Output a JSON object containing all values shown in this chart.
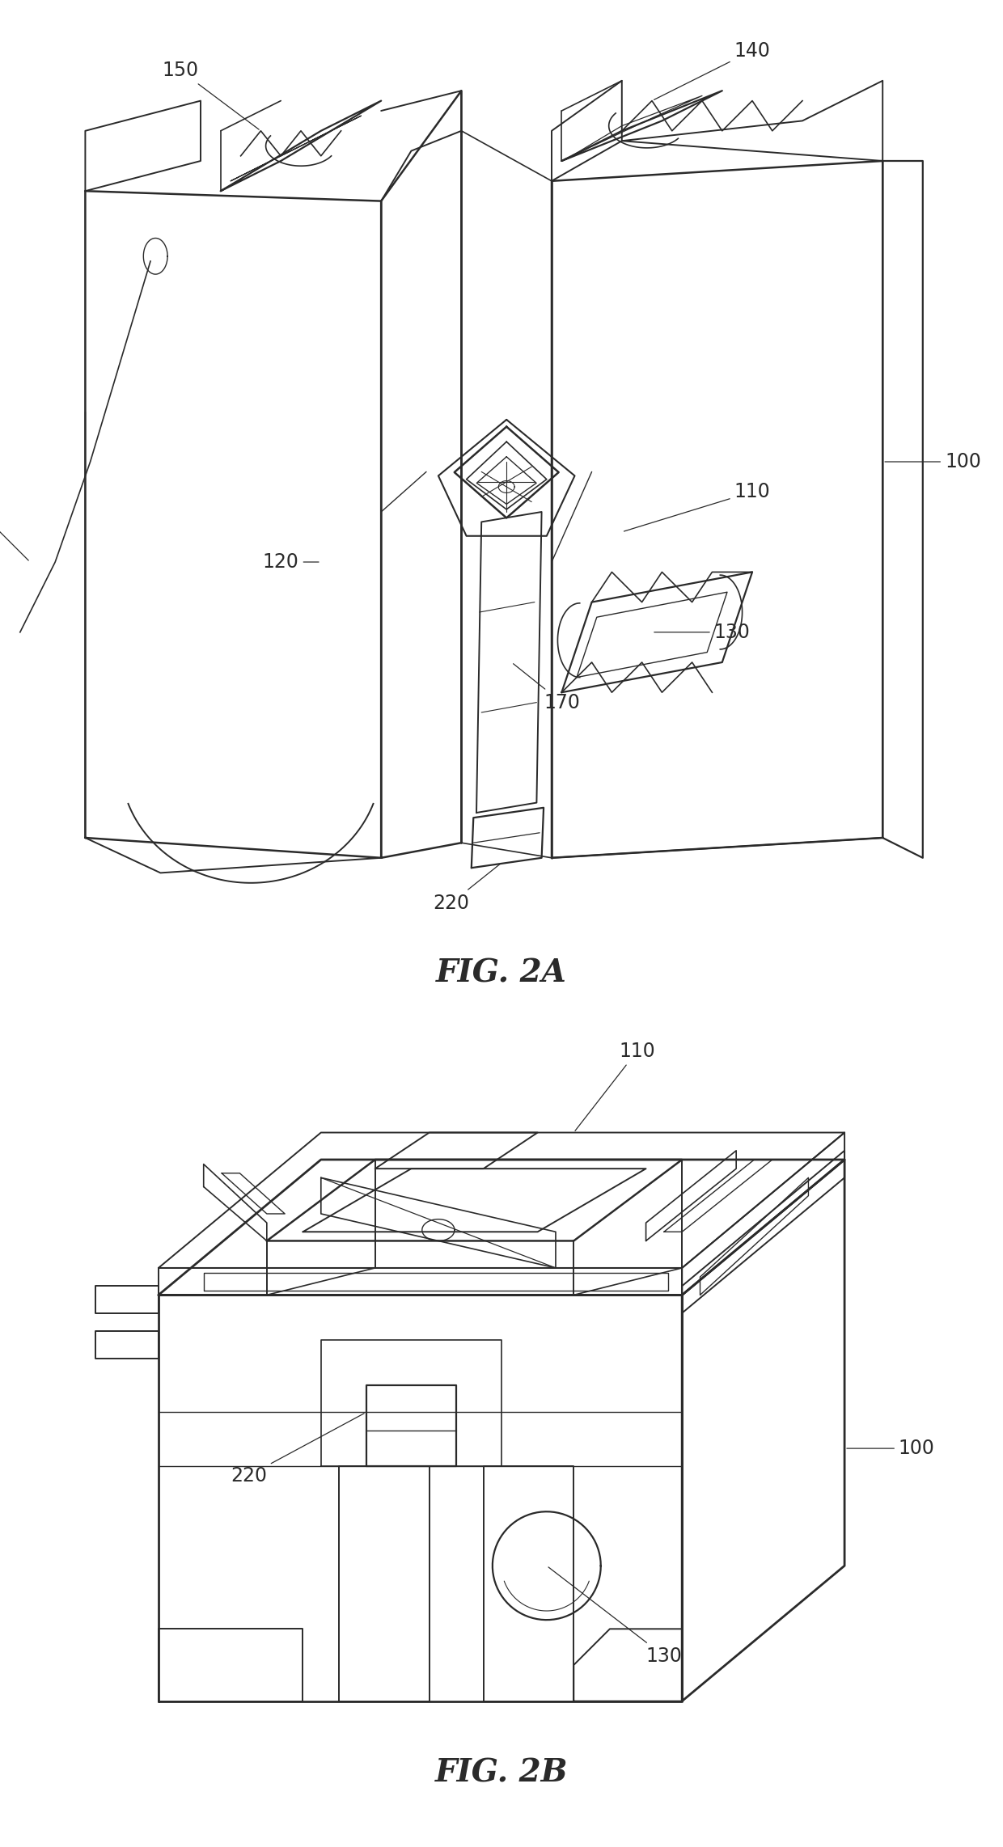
{
  "fig2a_label": "FIG. 2A",
  "fig2b_label": "FIG. 2B",
  "background_color": "#ffffff",
  "line_color": "#2a2a2a",
  "line_width": 1.4,
  "figcaption_fontsize": 28,
  "label_fontsize": 17
}
